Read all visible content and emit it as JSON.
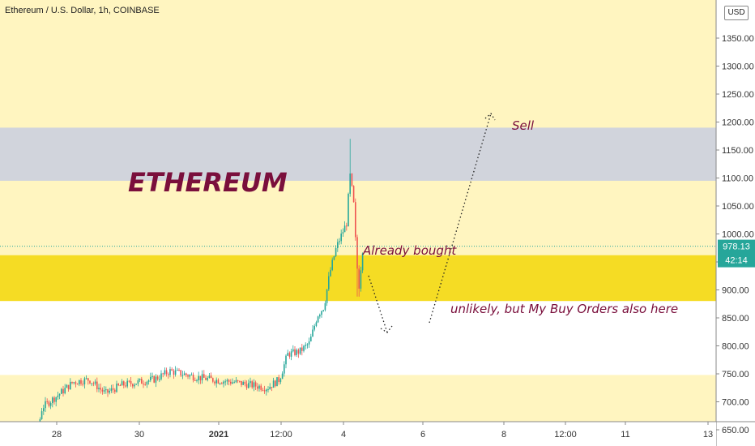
{
  "header": {
    "symbol": "Ethereum / U.S. Dollar, 1h, COINBASE"
  },
  "currency_button": "USD",
  "price_tag": {
    "price": "978.13",
    "countdown": "42:14",
    "color": "#26a69a"
  },
  "colors": {
    "background": "#fff5c0",
    "sell_zone": "#d1d4dc",
    "bought_zone": "#f5dc24",
    "buy_zone": "#ffffff",
    "up": "#26a69a",
    "down": "#ef5350",
    "annotation": "#7a0f3c"
  },
  "annotations": {
    "title": "ETHEREUM",
    "sell": "Sell",
    "bought": "Already bought",
    "buy_orders": "unlikely, but My Buy Orders also here"
  },
  "chart_data": {
    "type": "candlestick",
    "title": "",
    "y_axis_ticks": [
      "1350.00",
      "1300.00",
      "1250.00",
      "1200.00",
      "1150.00",
      "1100.00",
      "1050.00",
      "1000.00",
      "950.00",
      "900.00",
      "850.00",
      "800.00",
      "750.00",
      "700.00",
      "650.00"
    ],
    "y_tick_values": [
      1350,
      1300,
      1250,
      1200,
      1150,
      1100,
      1050,
      1000,
      950,
      900,
      850,
      800,
      750,
      700,
      650
    ],
    "x_axis_ticks": [
      "28",
      "30",
      "2021",
      "12:00",
      "4",
      "6",
      "8",
      "12:00",
      "11",
      "13"
    ],
    "ylim": [
      595,
      1380
    ],
    "last_price": 978.13,
    "zones": [
      {
        "name": "sell",
        "from": 1095,
        "to": 1190
      },
      {
        "name": "bought",
        "from": 880,
        "to": 962
      },
      {
        "name": "buy",
        "from": 748,
        "to": 880
      }
    ],
    "price_path": [
      [
        0,
        630
      ],
      [
        30,
        640
      ],
      [
        45,
        635
      ],
      [
        52,
        690
      ],
      [
        70,
        710
      ],
      [
        90,
        735
      ],
      [
        110,
        740
      ],
      [
        130,
        715
      ],
      [
        150,
        730
      ],
      [
        170,
        735
      ],
      [
        190,
        740
      ],
      [
        210,
        755
      ],
      [
        240,
        745
      ],
      [
        260,
        740
      ],
      [
        290,
        735
      ],
      [
        310,
        730
      ],
      [
        330,
        725
      ],
      [
        345,
        740
      ],
      [
        355,
        785
      ],
      [
        370,
        790
      ],
      [
        382,
        805
      ],
      [
        392,
        855
      ],
      [
        400,
        870
      ],
      [
        407,
        930
      ],
      [
        415,
        975
      ],
      [
        422,
        1000
      ],
      [
        428,
        1020
      ],
      [
        432,
        1110
      ],
      [
        436,
        1070
      ],
      [
        440,
        955
      ],
      [
        443,
        905
      ],
      [
        448,
        978
      ]
    ],
    "spike_high": 1170,
    "spike_low": 888
  }
}
